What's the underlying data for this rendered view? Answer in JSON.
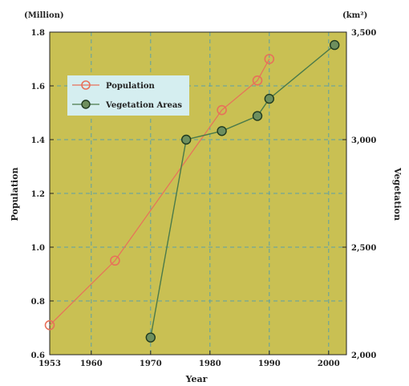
{
  "chart_data": {
    "type": "line",
    "xlabel": "Year",
    "x_ticks": [
      "1953",
      "1960",
      "1970",
      "1980",
      "1990",
      "2000"
    ],
    "xlim": [
      1953,
      2003
    ],
    "left_axis": {
      "label": "Population",
      "unit": "(Million)",
      "ylim": [
        0.6,
        1.8
      ],
      "ticks": [
        "0.6",
        "0.8",
        "1.0",
        "1.2",
        "1.4",
        "1.6",
        "1.8"
      ]
    },
    "right_axis": {
      "label": "Vegetation",
      "unit": "(km²)",
      "ylim": [
        2000,
        3500
      ],
      "ticks": [
        "2,000",
        "2,500",
        "3,000",
        "3,500"
      ]
    },
    "grid": true,
    "legend_position": "top-left",
    "background_color": "#c9c053",
    "series": [
      {
        "name": "Population",
        "axis": "left",
        "color": "#e8705a",
        "marker": "open-circle",
        "x": [
          1953,
          1964,
          1982,
          1988,
          1990
        ],
        "y": [
          0.71,
          0.95,
          1.51,
          1.62,
          1.7
        ]
      },
      {
        "name": "Vegetation Areas",
        "axis": "right",
        "color": "#4a7a4a",
        "marker": "filled-circle",
        "x": [
          1970,
          1976,
          1982,
          1988,
          1990,
          2001
        ],
        "y": [
          2080,
          3000,
          3040,
          3110,
          3190,
          3440
        ]
      }
    ]
  }
}
